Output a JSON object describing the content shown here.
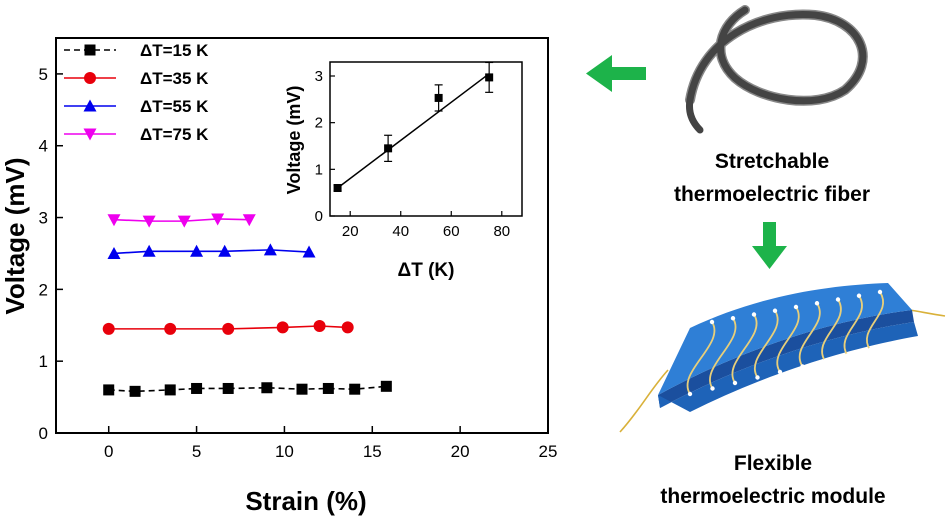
{
  "chart_data": [
    {
      "type": "line",
      "xlabel": "Strain (%)",
      "ylabel": "Voltage (mV)",
      "xlim": [
        -3,
        25
      ],
      "ylim": [
        0,
        5.5
      ],
      "xticks": [
        0,
        5,
        10,
        15,
        20,
        25
      ],
      "yticks": [
        0,
        1,
        2,
        3,
        4,
        5
      ],
      "legend_position": "top-left",
      "series": [
        {
          "name": "ΔT=15 K",
          "color": "#000000",
          "marker": "square",
          "line": "dashed",
          "x": [
            0,
            1.5,
            3.5,
            5,
            6.8,
            9,
            11,
            12.5,
            14,
            15.8
          ],
          "y": [
            0.6,
            0.58,
            0.6,
            0.62,
            0.62,
            0.63,
            0.61,
            0.62,
            0.61,
            0.65
          ]
        },
        {
          "name": "ΔT=35 K",
          "color": "#e8000b",
          "marker": "circle",
          "line": "solid",
          "x": [
            0,
            3.5,
            6.8,
            9.9,
            12,
            13.6
          ],
          "y": [
            1.45,
            1.45,
            1.45,
            1.47,
            1.49,
            1.47
          ]
        },
        {
          "name": "ΔT=55 K",
          "color": "#0000ee",
          "marker": "triangle-up",
          "line": "solid",
          "x": [
            0.3,
            2.3,
            5,
            6.6,
            9.2,
            11.4
          ],
          "y": [
            2.5,
            2.53,
            2.53,
            2.53,
            2.55,
            2.52
          ]
        },
        {
          "name": "ΔT=75 K",
          "color": "#ee00ee",
          "marker": "triangle-down",
          "line": "solid",
          "x": [
            0.3,
            2.3,
            4.3,
            6.2,
            8
          ],
          "y": [
            2.97,
            2.95,
            2.95,
            2.98,
            2.97
          ]
        }
      ]
    },
    {
      "type": "scatter",
      "role": "inset",
      "xlabel": "ΔT (K)",
      "ylabel": "Voltage (mV)",
      "xlim": [
        12,
        88
      ],
      "ylim": [
        0,
        3.3
      ],
      "xticks": [
        20,
        40,
        60,
        80
      ],
      "yticks": [
        0,
        1,
        2,
        3
      ],
      "x": [
        15,
        35,
        55,
        75
      ],
      "y": [
        0.6,
        1.45,
        2.53,
        2.97
      ],
      "yerr": [
        0.06,
        0.28,
        0.28,
        0.32
      ],
      "fit_line": {
        "x": [
          15,
          75
        ],
        "y": [
          0.6,
          3.05
        ]
      }
    }
  ],
  "labels": {
    "fiber_caption": [
      "Stretchable",
      "thermoelectric fiber"
    ],
    "module_caption": [
      "Flexible",
      "thermoelectric module"
    ]
  },
  "colors": {
    "arrow_green": "#1db34a",
    "module_blue": "#2f7fd6",
    "fiber_gray": "#444444"
  }
}
